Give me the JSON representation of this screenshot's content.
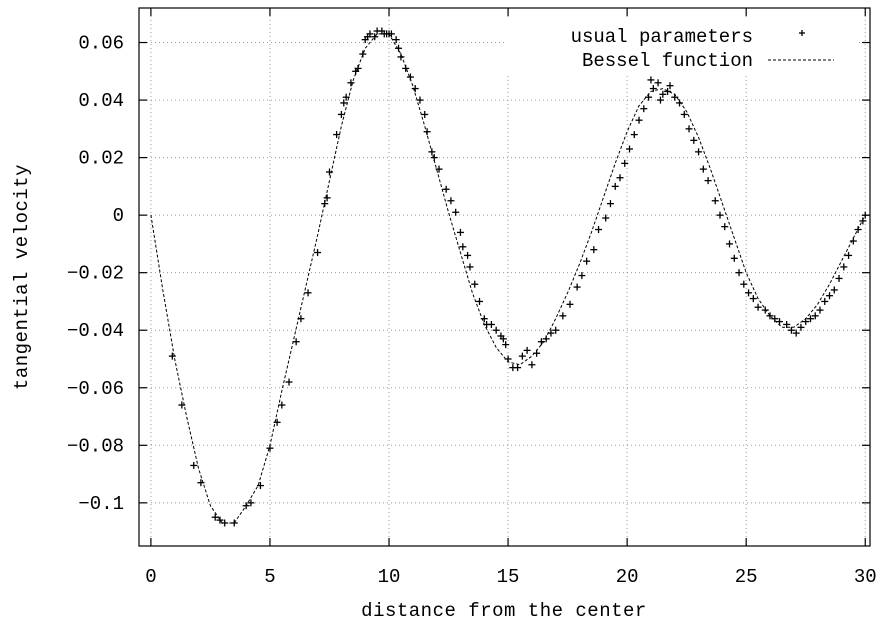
{
  "chart_data": {
    "type": "scatter",
    "title": "",
    "xlabel": "distance from the center",
    "ylabel": "tangential velocity",
    "xlim": [
      -0.5,
      30.2
    ],
    "ylim": [
      -0.115,
      0.072
    ],
    "xticks": [
      0,
      5,
      10,
      15,
      20,
      25,
      30
    ],
    "xtick_labels": [
      "0",
      "5",
      "10",
      "15",
      "20",
      "25",
      "30"
    ],
    "yticks": [
      0.06,
      0.04,
      0.02,
      0,
      -0.02,
      -0.04,
      -0.06,
      -0.08,
      -0.1
    ],
    "ytick_labels": [
      "0.06",
      "0.04",
      "0.02",
      "0",
      "−0.02",
      "−0.04",
      "−0.06",
      "−0.08",
      "−0.1"
    ],
    "grid": true,
    "legend_position": "top-right",
    "series": [
      {
        "name": "usual parameters",
        "style": "markers-plus",
        "points": [
          [
            0.9,
            -0.049
          ],
          [
            1.3,
            -0.066
          ],
          [
            1.8,
            -0.087
          ],
          [
            2.1,
            -0.093
          ],
          [
            2.7,
            -0.105
          ],
          [
            2.9,
            -0.106
          ],
          [
            3.1,
            -0.107
          ],
          [
            3.5,
            -0.107
          ],
          [
            4.0,
            -0.101
          ],
          [
            4.2,
            -0.1
          ],
          [
            4.6,
            -0.094
          ],
          [
            5.0,
            -0.081
          ],
          [
            5.3,
            -0.072
          ],
          [
            5.5,
            -0.066
          ],
          [
            5.8,
            -0.058
          ],
          [
            6.1,
            -0.044
          ],
          [
            6.3,
            -0.036
          ],
          [
            6.6,
            -0.027
          ],
          [
            7.0,
            -0.013
          ],
          [
            7.3,
            0.004
          ],
          [
            7.4,
            0.006
          ],
          [
            7.5,
            0.015
          ],
          [
            7.8,
            0.028
          ],
          [
            8.0,
            0.035
          ],
          [
            8.1,
            0.039
          ],
          [
            8.2,
            0.041
          ],
          [
            8.4,
            0.046
          ],
          [
            8.6,
            0.05
          ],
          [
            8.7,
            0.051
          ],
          [
            8.9,
            0.056
          ],
          [
            9.0,
            0.061
          ],
          [
            9.1,
            0.062
          ],
          [
            9.2,
            0.063
          ],
          [
            9.4,
            0.062
          ],
          [
            9.5,
            0.064
          ],
          [
            9.7,
            0.064
          ],
          [
            9.8,
            0.063
          ],
          [
            9.9,
            0.063
          ],
          [
            10.0,
            0.063
          ],
          [
            10.1,
            0.063
          ],
          [
            10.3,
            0.061
          ],
          [
            10.4,
            0.058
          ],
          [
            10.5,
            0.055
          ],
          [
            10.7,
            0.051
          ],
          [
            10.9,
            0.048
          ],
          [
            11.1,
            0.044
          ],
          [
            11.3,
            0.04
          ],
          [
            11.5,
            0.035
          ],
          [
            11.6,
            0.029
          ],
          [
            11.8,
            0.022
          ],
          [
            11.9,
            0.02
          ],
          [
            12.1,
            0.016
          ],
          [
            12.4,
            0.009
          ],
          [
            12.6,
            0.005
          ],
          [
            12.8,
            0.001
          ],
          [
            13.0,
            -0.006
          ],
          [
            13.1,
            -0.011
          ],
          [
            13.3,
            -0.014
          ],
          [
            13.4,
            -0.018
          ],
          [
            13.6,
            -0.024
          ],
          [
            13.8,
            -0.03
          ],
          [
            14.0,
            -0.036
          ],
          [
            14.1,
            -0.038
          ],
          [
            14.3,
            -0.038
          ],
          [
            14.5,
            -0.04
          ],
          [
            14.7,
            -0.042
          ],
          [
            14.8,
            -0.043
          ],
          [
            14.9,
            -0.045
          ],
          [
            15.0,
            -0.05
          ],
          [
            15.2,
            -0.053
          ],
          [
            15.4,
            -0.053
          ],
          [
            15.6,
            -0.049
          ],
          [
            15.8,
            -0.047
          ],
          [
            16.0,
            -0.052
          ],
          [
            16.2,
            -0.048
          ],
          [
            16.4,
            -0.044
          ],
          [
            16.6,
            -0.043
          ],
          [
            16.8,
            -0.041
          ],
          [
            17.0,
            -0.04
          ],
          [
            17.3,
            -0.035
          ],
          [
            17.6,
            -0.031
          ],
          [
            17.9,
            -0.025
          ],
          [
            18.1,
            -0.021
          ],
          [
            18.3,
            -0.016
          ],
          [
            18.6,
            -0.012
          ],
          [
            18.8,
            -0.005
          ],
          [
            19.1,
            -0.001
          ],
          [
            19.3,
            0.004
          ],
          [
            19.5,
            0.01
          ],
          [
            19.7,
            0.013
          ],
          [
            19.9,
            0.018
          ],
          [
            20.1,
            0.023
          ],
          [
            20.3,
            0.028
          ],
          [
            20.5,
            0.033
          ],
          [
            20.7,
            0.037
          ],
          [
            20.9,
            0.041
          ],
          [
            21.0,
            0.047
          ],
          [
            21.1,
            0.044
          ],
          [
            21.3,
            0.046
          ],
          [
            21.4,
            0.04
          ],
          [
            21.5,
            0.042
          ],
          [
            21.7,
            0.043
          ],
          [
            21.8,
            0.045
          ],
          [
            22.0,
            0.041
          ],
          [
            22.2,
            0.039
          ],
          [
            22.4,
            0.035
          ],
          [
            22.6,
            0.03
          ],
          [
            22.8,
            0.026
          ],
          [
            23.0,
            0.022
          ],
          [
            23.2,
            0.016
          ],
          [
            23.4,
            0.012
          ],
          [
            23.7,
            0.005
          ],
          [
            23.9,
            0.0
          ],
          [
            24.1,
            -0.004
          ],
          [
            24.3,
            -0.01
          ],
          [
            24.5,
            -0.015
          ],
          [
            24.7,
            -0.02
          ],
          [
            24.9,
            -0.024
          ],
          [
            25.1,
            -0.027
          ],
          [
            25.3,
            -0.029
          ],
          [
            25.5,
            -0.032
          ],
          [
            25.8,
            -0.033
          ],
          [
            26.0,
            -0.035
          ],
          [
            26.2,
            -0.036
          ],
          [
            26.4,
            -0.037
          ],
          [
            26.7,
            -0.038
          ],
          [
            26.9,
            -0.04
          ],
          [
            27.1,
            -0.041
          ],
          [
            27.3,
            -0.039
          ],
          [
            27.5,
            -0.037
          ],
          [
            27.7,
            -0.036
          ],
          [
            27.9,
            -0.035
          ],
          [
            28.1,
            -0.033
          ],
          [
            28.3,
            -0.03
          ],
          [
            28.5,
            -0.028
          ],
          [
            28.7,
            -0.026
          ],
          [
            28.9,
            -0.022
          ],
          [
            29.1,
            -0.018
          ],
          [
            29.3,
            -0.014
          ],
          [
            29.5,
            -0.009
          ],
          [
            29.7,
            -0.005
          ],
          [
            29.9,
            -0.002
          ],
          [
            30.0,
            0.0
          ]
        ]
      },
      {
        "name": "Bessel function",
        "style": "dashed-line",
        "points": [
          [
            0.0,
            0.0
          ],
          [
            0.5,
            -0.026
          ],
          [
            1.0,
            -0.05
          ],
          [
            1.5,
            -0.07
          ],
          [
            2.0,
            -0.088
          ],
          [
            2.5,
            -0.101
          ],
          [
            3.0,
            -0.107
          ],
          [
            3.5,
            -0.107
          ],
          [
            4.0,
            -0.101
          ],
          [
            4.5,
            -0.094
          ],
          [
            5.0,
            -0.08
          ],
          [
            5.5,
            -0.061
          ],
          [
            6.0,
            -0.043
          ],
          [
            6.5,
            -0.025
          ],
          [
            7.0,
            -0.007
          ],
          [
            7.5,
            0.012
          ],
          [
            8.0,
            0.031
          ],
          [
            8.5,
            0.047
          ],
          [
            9.0,
            0.058
          ],
          [
            9.5,
            0.063
          ],
          [
            10.0,
            0.063
          ],
          [
            10.5,
            0.056
          ],
          [
            11.0,
            0.045
          ],
          [
            11.5,
            0.031
          ],
          [
            12.0,
            0.016
          ],
          [
            12.5,
            0.001
          ],
          [
            13.0,
            -0.013
          ],
          [
            13.5,
            -0.027
          ],
          [
            14.0,
            -0.038
          ],
          [
            14.5,
            -0.046
          ],
          [
            15.0,
            -0.051
          ],
          [
            15.5,
            -0.052
          ],
          [
            16.0,
            -0.049
          ],
          [
            16.5,
            -0.044
          ],
          [
            17.0,
            -0.036
          ],
          [
            17.5,
            -0.027
          ],
          [
            18.0,
            -0.017
          ],
          [
            18.5,
            -0.006
          ],
          [
            19.0,
            0.006
          ],
          [
            19.5,
            0.018
          ],
          [
            20.0,
            0.029
          ],
          [
            20.5,
            0.038
          ],
          [
            21.0,
            0.043
          ],
          [
            21.5,
            0.044
          ],
          [
            22.0,
            0.042
          ],
          [
            22.5,
            0.036
          ],
          [
            23.0,
            0.027
          ],
          [
            23.5,
            0.016
          ],
          [
            24.0,
            0.004
          ],
          [
            24.5,
            -0.008
          ],
          [
            25.0,
            -0.02
          ],
          [
            25.5,
            -0.029
          ],
          [
            26.0,
            -0.035
          ],
          [
            26.5,
            -0.039
          ],
          [
            27.0,
            -0.039
          ],
          [
            27.5,
            -0.036
          ],
          [
            28.0,
            -0.031
          ],
          [
            28.5,
            -0.024
          ],
          [
            29.0,
            -0.016
          ],
          [
            29.5,
            -0.008
          ],
          [
            30.0,
            0.0
          ]
        ]
      }
    ]
  }
}
